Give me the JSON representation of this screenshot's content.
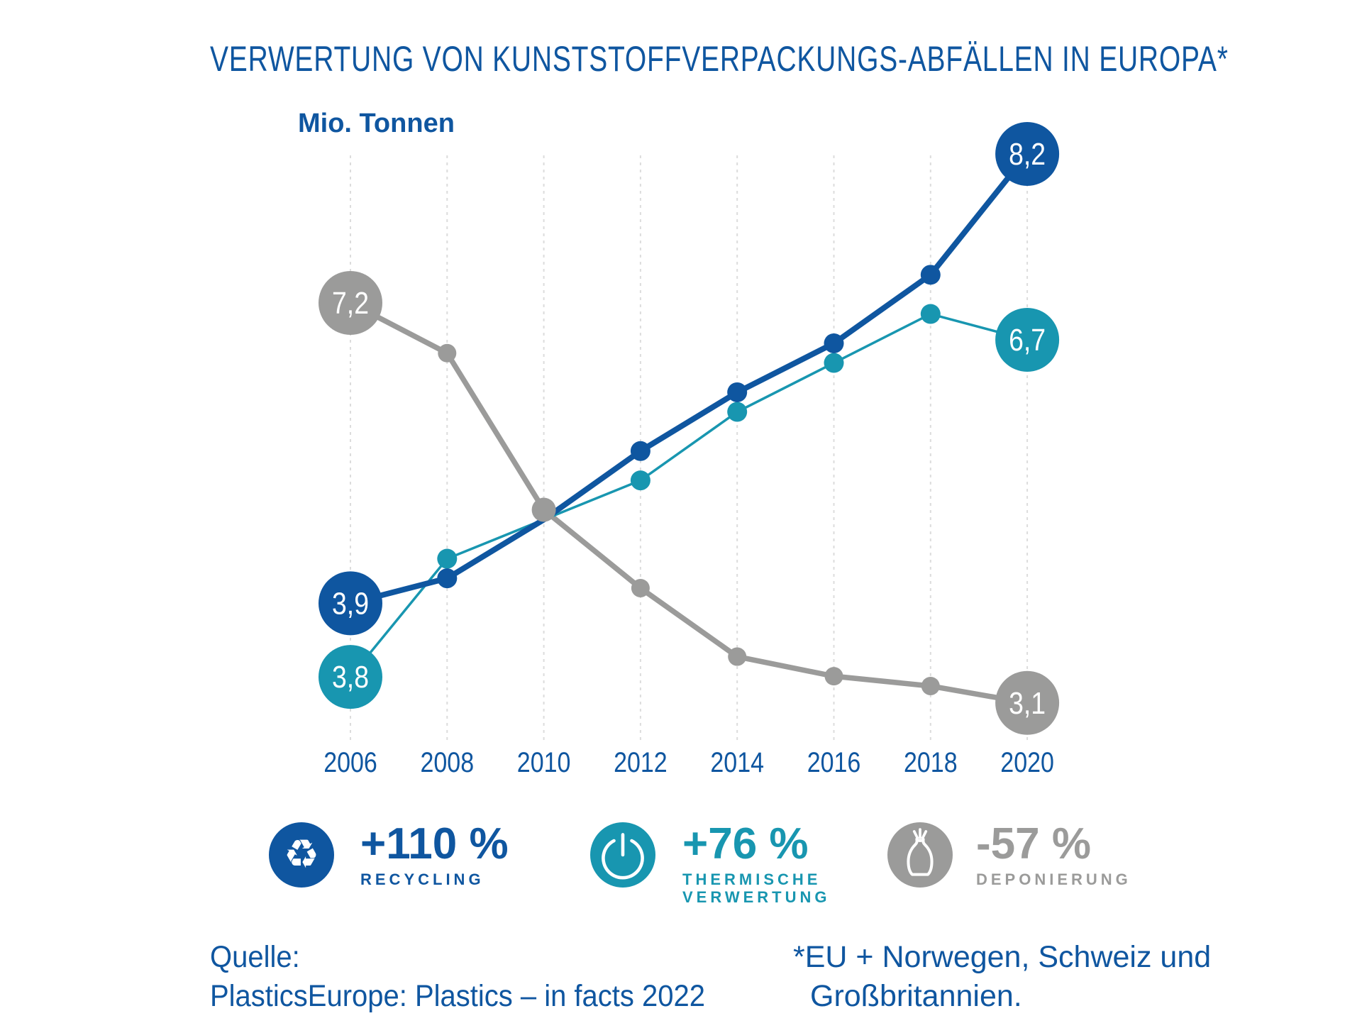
{
  "title": "VERWERTUNG VON KUNSTSTOFFVERPACKUNGS-ABFÄLLEN IN EUROPA*",
  "chart_data": {
    "type": "line",
    "title": "VERWERTUNG VON KUNSTSTOFFVERPACKUNGS-ABFÄLLEN IN EUROPA*",
    "ylabel": "Mio. Tonnen",
    "xlabel": "",
    "x": [
      2006,
      2008,
      2010,
      2012,
      2014,
      2016,
      2018,
      2020
    ],
    "ylim": [
      2.6,
      8.7
    ],
    "grid": "vertical-dashed-light",
    "legend_position": "below",
    "series": [
      {
        "name": "Recycling",
        "color": "#0f56a0",
        "values": [
          3.9,
          4.3,
          4.9,
          5.6,
          6.2,
          6.7,
          7.4,
          8.2
        ],
        "first_point_label": "3,9",
        "last_point_label": "8,2",
        "change": "+110 %"
      },
      {
        "name": "Thermische Verwertung",
        "color": "#1896b0",
        "values": [
          3.8,
          4.5,
          4.9,
          5.3,
          6.0,
          6.5,
          7.0,
          6.7
        ],
        "first_point_label": "3,8",
        "last_point_label": "6,7",
        "change": "+76 %"
      },
      {
        "name": "Deponierung",
        "color": "#9b9b9a",
        "values": [
          7.2,
          6.6,
          5.0,
          4.2,
          3.5,
          3.3,
          3.2,
          3.1
        ],
        "first_point_label": "7,2",
        "last_point_label": "3,1",
        "change": "-57 %"
      }
    ],
    "axis_label_color": "#0f56a0",
    "gridline_color": "#dcdcdc"
  },
  "legend": {
    "items": [
      {
        "icon": "recycling-icon",
        "value": "+110 %",
        "line1": "RECYCLING",
        "line2": "",
        "color": "#0f56a0"
      },
      {
        "icon": "power-icon",
        "value": "+76 %",
        "line1": "THERMISCHE",
        "line2": "VERWERTUNG",
        "color": "#1896b0"
      },
      {
        "icon": "trash-bag-icon",
        "value": "-57 %",
        "line1": "DEPONIERUNG",
        "line2": "",
        "color": "#9b9b9a"
      }
    ]
  },
  "source": {
    "line1": "Quelle:",
    "line2": "PlasticsEurope: Plastics – in facts 2022"
  },
  "footnote": {
    "line1": "*EU + Norwegen, Schweiz und",
    "line2": "Großbritannien."
  }
}
